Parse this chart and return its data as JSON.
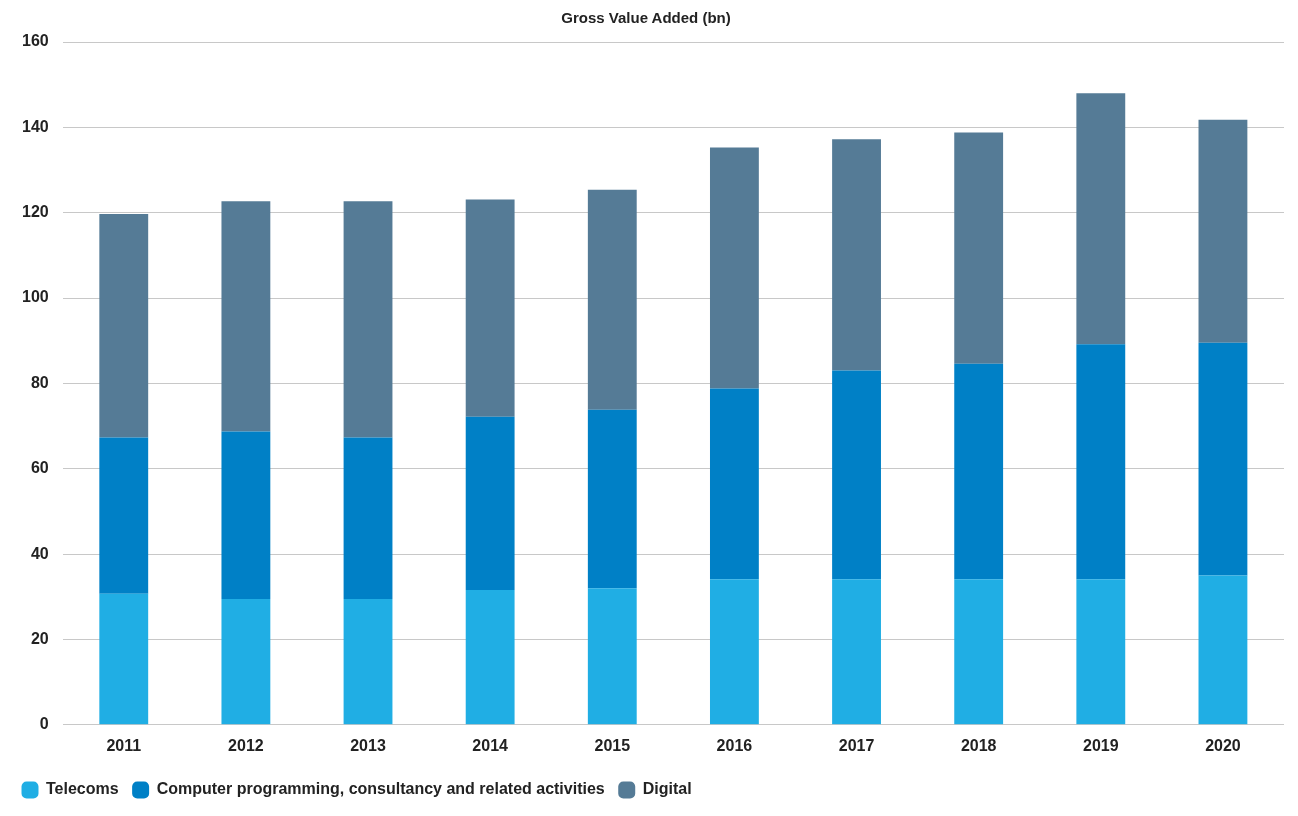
{
  "chart_data": {
    "type": "bar",
    "title": "Gross Value Added (bn)",
    "stacked": true,
    "categories": [
      "2011",
      "2012",
      "2013",
      "2014",
      "2015",
      "2016",
      "2017",
      "2018",
      "2019",
      "2020"
    ],
    "series": [
      {
        "name": "Telecoms",
        "color": "#20aee4",
        "values": [
          30.7,
          29.5,
          29.5,
          31.6,
          32.0,
          34.1,
          34.1,
          34.1,
          34.1,
          35.0
        ]
      },
      {
        "name": "Computer programming, consultancy and related activities",
        "color": "#0080c6",
        "values": [
          36.6,
          39.2,
          37.8,
          40.6,
          41.8,
          44.7,
          48.9,
          50.5,
          55.1,
          54.5
        ]
      },
      {
        "name": "Digital",
        "color": "#557b96",
        "values": [
          52.4,
          54.0,
          55.4,
          50.9,
          51.6,
          56.5,
          54.2,
          54.2,
          58.8,
          52.3
        ]
      }
    ],
    "ylim": [
      0,
      160
    ],
    "yticks": [
      0,
      20,
      40,
      60,
      80,
      100,
      120,
      140,
      160
    ],
    "grid": "y",
    "legend": "bottom left"
  }
}
